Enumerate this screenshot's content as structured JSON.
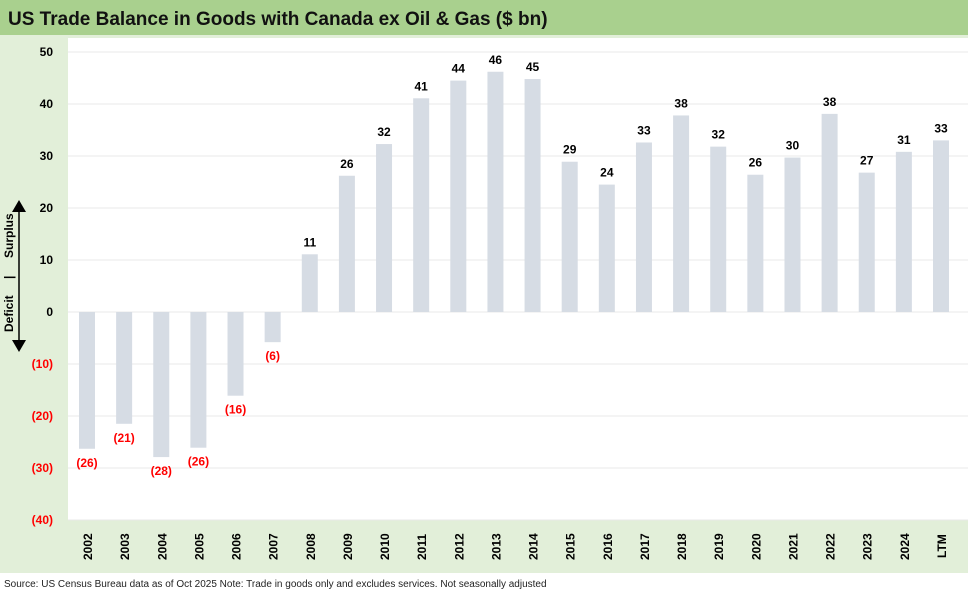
{
  "chart_data": {
    "type": "bar",
    "title": "US Trade Balance in Goods with Canada ex Oil & Gas ($ bn)",
    "categories": [
      "2002",
      "2003",
      "2004",
      "2005",
      "2006",
      "2007",
      "2008",
      "2009",
      "2010",
      "2011",
      "2012",
      "2013",
      "2014",
      "2015",
      "2016",
      "2017",
      "2018",
      "2019",
      "2020",
      "2021",
      "2022",
      "2023",
      "2024",
      "LTM"
    ],
    "values": [
      -26.3,
      -21.5,
      -27.9,
      -26.1,
      -16.1,
      -5.8,
      11.1,
      26.2,
      32.3,
      41.1,
      44.5,
      46.2,
      44.8,
      28.9,
      24.5,
      32.6,
      37.8,
      31.8,
      26.4,
      29.7,
      38.1,
      26.8,
      30.8,
      33.0
    ],
    "data_labels": [
      "(26)",
      "(21)",
      "(28)",
      "(26)",
      "(16)",
      "(6)",
      "11",
      "26",
      "32",
      "41",
      "44",
      "46",
      "45",
      "29",
      "24",
      "33",
      "38",
      "32",
      "26",
      "30",
      "38",
      "27",
      "31",
      "33"
    ],
    "ylim": [
      -40,
      50
    ],
    "yticks": [
      50,
      40,
      30,
      20,
      10,
      0,
      -10,
      -20,
      -30,
      -40
    ],
    "ytick_labels": [
      "50",
      "40",
      "30",
      "20",
      "10",
      "0",
      "(10)",
      "(20)",
      "(30)",
      "(40)"
    ],
    "ylabel_surplus": "Surplus",
    "ylabel_separator": "|",
    "ylabel_deficit": "Deficit",
    "xlabel": "",
    "grid": true,
    "colors": {
      "bar": "#d6dce4",
      "negative_label": "#ff0000",
      "header": "#a9d08e",
      "panel": "#e2efd9"
    }
  },
  "footer": "Source: US Census Bureau data as of Oct 2025 Note: Trade in goods only and excludes services. Not seasonally adjusted"
}
